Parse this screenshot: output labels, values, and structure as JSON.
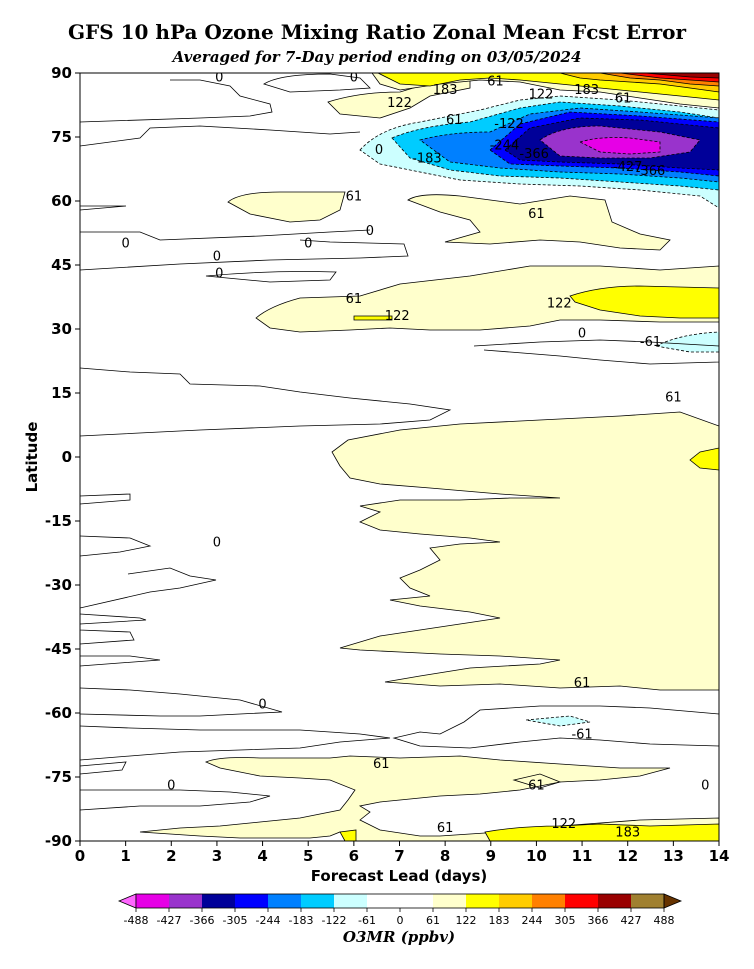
{
  "chart_data": {
    "type": "contour",
    "title": "GFS 10 hPa Ozone Mixing Ratio Zonal Mean Fcst Error",
    "subtitle": "Averaged for 7-Day period ending on 03/05/2024",
    "xlabel": "Forecast Lead (days)",
    "ylabel": "Latitude",
    "xlim": [
      0,
      14
    ],
    "ylim": [
      -90,
      90
    ],
    "x_ticks": [
      0,
      1,
      2,
      3,
      4,
      5,
      6,
      7,
      8,
      9,
      10,
      11,
      12,
      13,
      14
    ],
    "y_ticks": [
      90,
      75,
      60,
      45,
      30,
      15,
      0,
      -15,
      -30,
      -45,
      -60,
      -75,
      -90
    ],
    "colorbar": {
      "label": "O3MR (ppbv)",
      "levels": [
        -488,
        -427,
        -366,
        -305,
        -244,
        -183,
        -122,
        -61,
        0,
        61,
        122,
        183,
        244,
        305,
        366,
        427,
        488
      ],
      "colors": [
        "#ff66ff",
        "#e600e6",
        "#9933cc",
        "#000099",
        "#0000ff",
        "#0080ff",
        "#00ccff",
        "#ccffff",
        "#ffffff",
        "#ffffff",
        "#ffffcc",
        "#ffff00",
        "#ffcc00",
        "#ff8000",
        "#ff0000",
        "#990000",
        "#a08030",
        "#663300"
      ]
    },
    "contour_labels": [
      {
        "text": "0",
        "x": 3.05,
        "y": 89
      },
      {
        "text": "0",
        "x": 6.0,
        "y": 89
      },
      {
        "text": "61",
        "x": 9.1,
        "y": 88
      },
      {
        "text": "183",
        "x": 8.0,
        "y": 86
      },
      {
        "text": "122",
        "x": 7.0,
        "y": 83
      },
      {
        "text": "183",
        "x": 11.1,
        "y": 86
      },
      {
        "text": "61",
        "x": 11.9,
        "y": 84
      },
      {
        "text": "122",
        "x": 10.1,
        "y": 85
      },
      {
        "text": "61",
        "x": 8.2,
        "y": 79
      },
      {
        "text": "0",
        "x": 6.55,
        "y": 72
      },
      {
        "text": "-183",
        "x": 7.6,
        "y": 70
      },
      {
        "text": "-122",
        "x": 9.4,
        "y": 78
      },
      {
        "text": "-244",
        "x": 9.3,
        "y": 73
      },
      {
        "text": "-366",
        "x": 9.95,
        "y": 71
      },
      {
        "text": "-427",
        "x": 12.0,
        "y": 68
      },
      {
        "text": "-366",
        "x": 12.5,
        "y": 67
      },
      {
        "text": "61",
        "x": 6.0,
        "y": 61
      },
      {
        "text": "0",
        "x": 6.35,
        "y": 53
      },
      {
        "text": "0",
        "x": 1.0,
        "y": 50
      },
      {
        "text": "0",
        "x": 5.0,
        "y": 50
      },
      {
        "text": "0",
        "x": 3.0,
        "y": 47
      },
      {
        "text": "0",
        "x": 3.05,
        "y": 43
      },
      {
        "text": "61",
        "x": 10.0,
        "y": 57
      },
      {
        "text": "61",
        "x": 6.0,
        "y": 37
      },
      {
        "text": "122",
        "x": 6.95,
        "y": 33
      },
      {
        "text": "122",
        "x": 10.5,
        "y": 36
      },
      {
        "text": "0",
        "x": 11.0,
        "y": 29
      },
      {
        "text": "-61",
        "x": 12.5,
        "y": 27
      },
      {
        "text": "61",
        "x": 13.0,
        "y": 14
      },
      {
        "text": "0",
        "x": 3.0,
        "y": -20
      },
      {
        "text": "61",
        "x": 11.0,
        "y": -53
      },
      {
        "text": "0",
        "x": 4.0,
        "y": -58
      },
      {
        "text": "-61",
        "x": 11.0,
        "y": -65
      },
      {
        "text": "61",
        "x": 6.6,
        "y": -72
      },
      {
        "text": "0",
        "x": 2.0,
        "y": -77
      },
      {
        "text": "61",
        "x": 10.0,
        "y": -77
      },
      {
        "text": "0",
        "x": 13.7,
        "y": -77
      },
      {
        "text": "61",
        "x": 8.0,
        "y": -87
      },
      {
        "text": "122",
        "x": 10.6,
        "y": -86
      },
      {
        "text": "183",
        "x": 12.0,
        "y": -88
      }
    ]
  }
}
